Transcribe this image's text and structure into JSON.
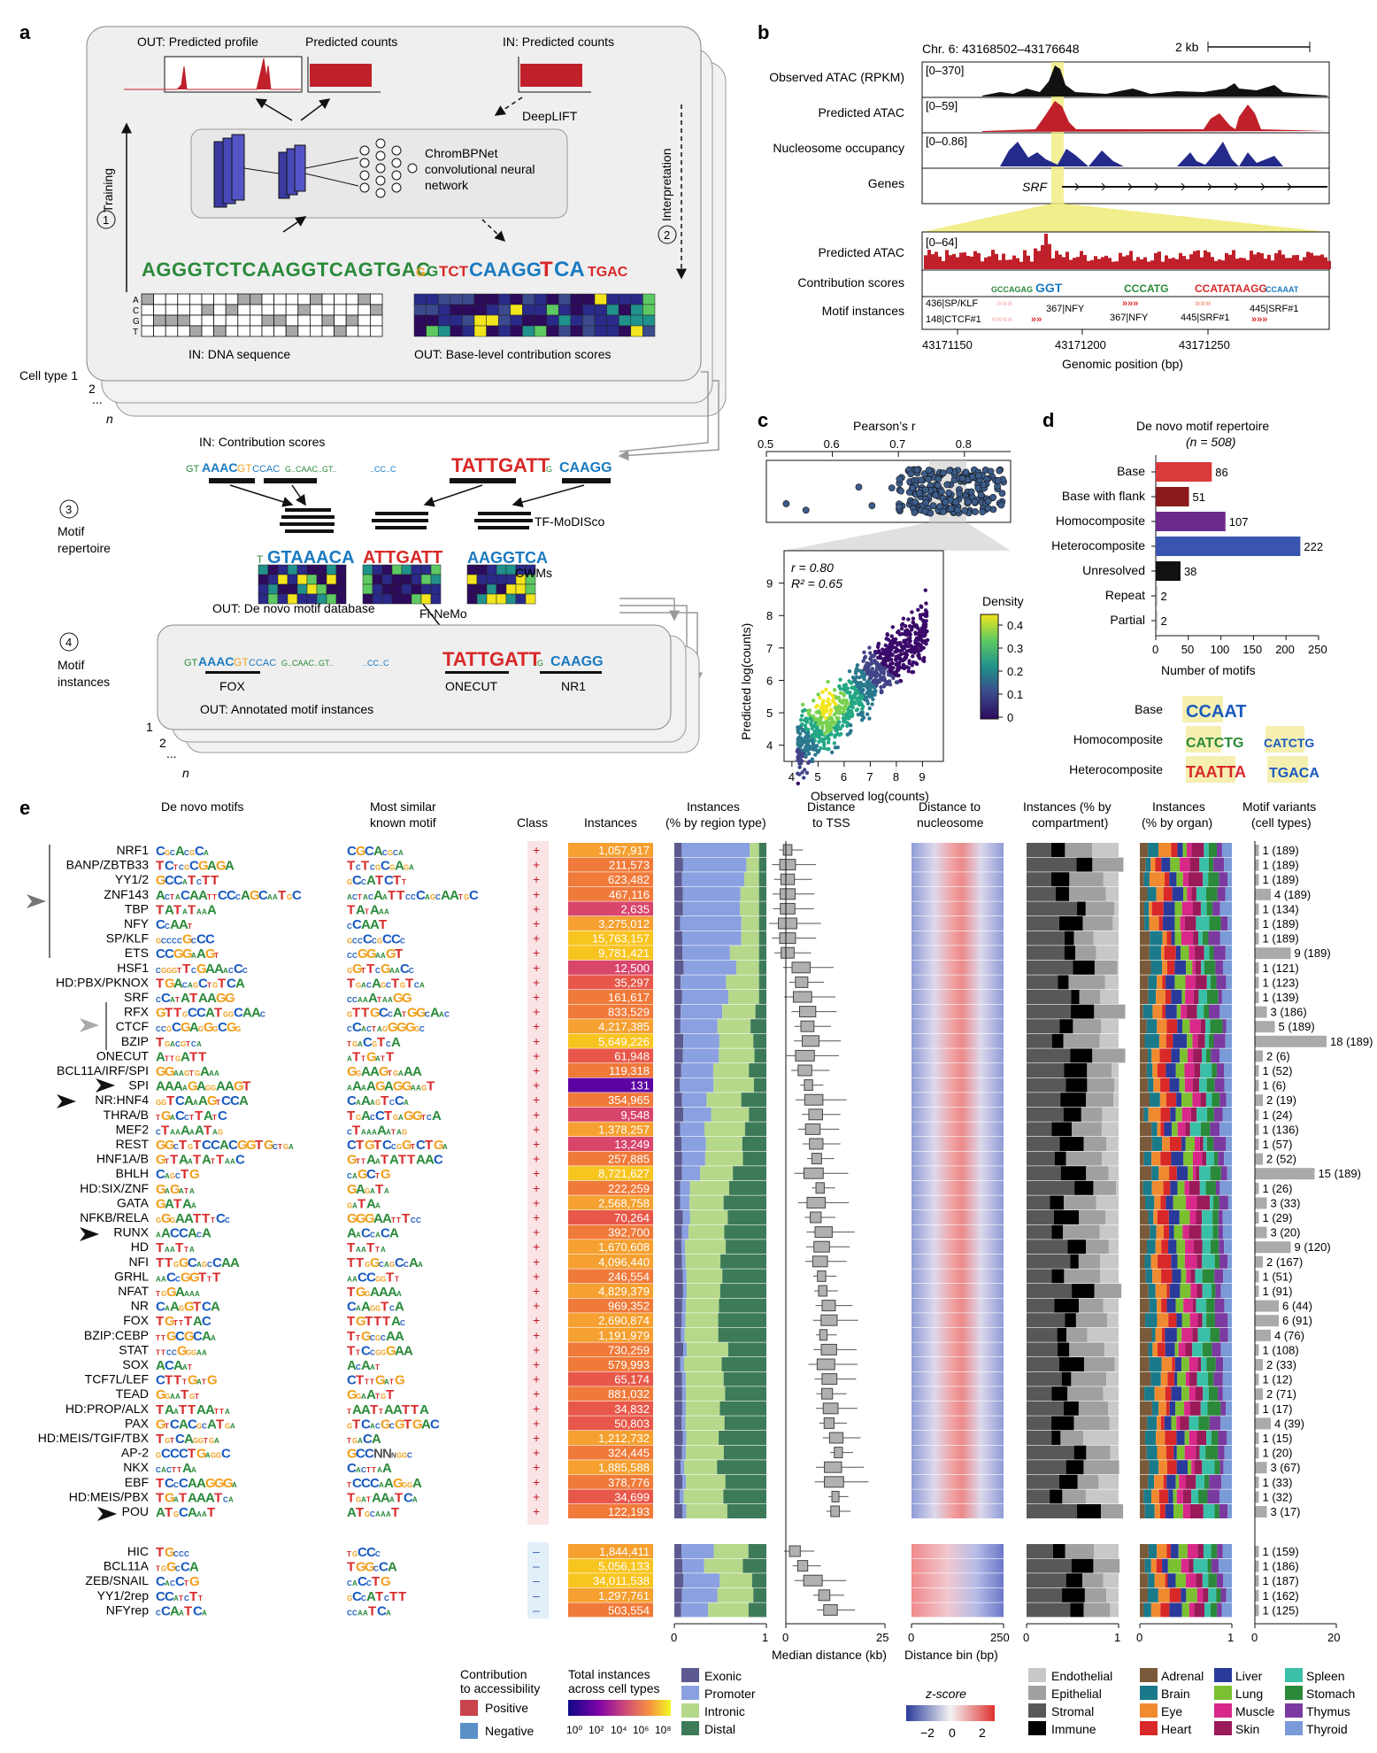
{
  "panel_a": {
    "letter": "a",
    "out_profile": "OUT:  Predicted profile",
    "out_counts": "Predicted counts",
    "in_counts": "IN: Predicted counts",
    "deeplift": "DeepLIFT",
    "model_line1": "ChromBPNet",
    "model_line2": "convolutional neural",
    "model_line3": "network",
    "training": "Training",
    "interpretation": "Interpretation",
    "step1": "1",
    "step2": "2",
    "step3": "3",
    "step4": "4",
    "dna_sequence": "AGGGTCTCAAGGTCAGTGAC",
    "in_dna": "IN: DNA sequence",
    "out_contrib": "OUT: Base-level contribution scores",
    "cell_type_1": "Cell type 1",
    "cell_type_2": "2",
    "cell_dots": "...",
    "cell_n": "n",
    "in_contrib": "IN: Contribution scores",
    "tf_modisco": "TF-MoDISco",
    "motif_repertoire_1": "Motif",
    "motif_repertoire_2": "repertoire",
    "cwms": "CWMs",
    "out_denovo": "OUT: De novo motif database",
    "finemo": "Fi-NeMo",
    "motif_instances_1": "Motif",
    "motif_instances_2": "instances",
    "inst_fox": "FOX",
    "inst_onecut": "ONECUT",
    "inst_nr1": "NR1",
    "out_annotated": "OUT: Annotated motif instances",
    "stack_1": "1",
    "stack_2": "2",
    "stack_dots": "...",
    "stack_n": "n",
    "acgt": [
      "A",
      "C",
      "G",
      "T"
    ]
  },
  "panel_b": {
    "letter": "b",
    "locus": "Chr. 6: 43168502–43176648",
    "scale": "2 kb",
    "tracks": [
      {
        "label": "Observed ATAC (RPKM)",
        "range": "[0–370]"
      },
      {
        "label": "Predicted ATAC",
        "range": "[0–59]"
      },
      {
        "label": "Nucleosome occupancy",
        "range": "[0–0.86]"
      },
      {
        "label": "Genes",
        "range": ""
      }
    ],
    "gene": "SRF",
    "zoom_tracks": [
      {
        "label": "Predicted ATAC",
        "range": "[0–64]"
      },
      {
        "label": "Contribution scores",
        "range": ""
      },
      {
        "label": "Motif instances",
        "range": ""
      }
    ],
    "motif_labels": [
      "436|SP/KLF",
      "148|CTCF#1",
      "367|NFY",
      "367|NFY",
      "445|SRF#1",
      "445|SRF#1"
    ],
    "x_ticks": [
      "43171150",
      "43171200",
      "43171250"
    ],
    "x_label": "Genomic position (bp)"
  },
  "panel_c": {
    "letter": "c",
    "title": "Pearson’s r",
    "top_ticks": [
      "0.5",
      "0.6",
      "0.7",
      "0.8"
    ],
    "r_text": "r = 0.80",
    "r2_text": "R² = 0.65",
    "x_label": "Observed log(counts)",
    "y_label": "Predicted log(counts)",
    "x_ticks": [
      "4",
      "5",
      "6",
      "7",
      "8",
      "9"
    ],
    "y_ticks": [
      "4",
      "5",
      "6",
      "7",
      "8",
      "9"
    ],
    "density_label": "Density",
    "density_ticks": [
      "0.4",
      "0.3",
      "0.2",
      "0.1",
      "0"
    ]
  },
  "panel_d": {
    "letter": "d",
    "title": "De novo motif repertoire",
    "subtitle": "(n = 508)",
    "x_label": "Number of motifs",
    "examples": [
      "Base",
      "Homocomposite",
      "Heterocomposite"
    ],
    "logo_text": [
      "CCAAT",
      "CATCTG",
      "CATCTG",
      "TAATTA",
      "TGACA"
    ]
  },
  "chart_data": {
    "type": "bar",
    "title": "De novo motif repertoire",
    "categories": [
      "Base",
      "Base with flank",
      "Homocomposite",
      "Heterocomposite",
      "Unresolved",
      "Repeat",
      "Partial"
    ],
    "values": [
      86,
      51,
      107,
      222,
      38,
      2,
      2
    ],
    "colors": [
      "#d93a3a",
      "#8b1a1a",
      "#6a2a8c",
      "#3a55b0",
      "#111111",
      "#888888",
      "#888888"
    ],
    "xlabel": "Number of motifs",
    "ylabel": "",
    "xlim": [
      0,
      250
    ],
    "x_ticks": [
      "0",
      "50",
      "100",
      "150",
      "200",
      "250"
    ]
  },
  "panel_e": {
    "letter": "e",
    "headers": {
      "denovo": "De novo motifs",
      "similar_1": "Most similar",
      "similar_2": "known motif",
      "class": "Class",
      "instances": "Instances",
      "region_1": "Instances",
      "region_2": "(% by region type)",
      "tss_1": "Distance",
      "tss_2": "to TSS",
      "nuc_1": "Distance to",
      "nuc_2": "nucleosome",
      "comp_1": "Instances (% by",
      "comp_2": "compartment)",
      "organ_1": "Instances",
      "organ_2": "(% by organ)",
      "variants_1": "Motif variants",
      "variants_2": "(cell types)"
    },
    "positive_rows": [
      {
        "name": "NRF1",
        "logo": "CGCACGCA",
        "known": "CGCACGCA",
        "count": "1,057,917",
        "variants": "1 (189)"
      },
      {
        "name": "BANP/ZBTB33",
        "logo": "TCTCGCGAGA",
        "known": "TCTCGCGAGA",
        "count": "211,573",
        "variants": "1 (189)"
      },
      {
        "name": "YY1/2",
        "logo": "GCCATCTT",
        "known": "GCCATCTT",
        "count": "623,482",
        "variants": "1 (189)"
      },
      {
        "name": "ZNF143",
        "logo": "ACTACAATTCCCAGCAATGC",
        "known": "ACTACAATTCCCAGCAATGC",
        "count": "467,116",
        "variants": "4 (189)"
      },
      {
        "name": "TBP",
        "logo": "TATATAAA",
        "known": "TATAAA",
        "count": "2,635",
        "variants": "1 (134)"
      },
      {
        "name": "NFY",
        "logo": "CCAAT",
        "known": "CCAAT",
        "count": "3,275,012",
        "variants": "1 (189)"
      },
      {
        "name": "SP/KLF",
        "logo": "GCCCCGCCC",
        "known": "GCCCCGCCC",
        "count": "15,763,157",
        "variants": "1 (189)"
      },
      {
        "name": "ETS",
        "logo": "CCGGAAGT",
        "known": "CCGGAAGT",
        "count": "9,781,421",
        "variants": "9 (189)"
      },
      {
        "name": "HSF1",
        "logo": "CGGGTTCGAAACCC",
        "known": "GGTTCGAACC",
        "count": "12,500",
        "variants": "1 (121)"
      },
      {
        "name": "HD:PBX/PKNOX",
        "logo": "TGACAGCTGTCA",
        "known": "TGACAGCTGTCA",
        "count": "35,297",
        "variants": "1 (123)"
      },
      {
        "name": "SRF",
        "logo": "CCATATAAGG",
        "known": "CCAAATAAGG",
        "count": "161,617",
        "variants": "1 (139)"
      },
      {
        "name": "RFX",
        "logo": "GTTGCCATGGCAAC",
        "known": "GTTGCCATGGCAAC",
        "count": "833,529",
        "variants": "3 (186)"
      },
      {
        "name": "CTCF",
        "logo": "CCGCGAGGGCGG",
        "known": "CCACTAGGGGGC",
        "count": "4,217,385",
        "variants": "5 (189)"
      },
      {
        "name": "BZIP",
        "logo": "TGACGTCA",
        "known": "TGACGTCA",
        "count": "5,649,226",
        "variants": "18 (189)"
      },
      {
        "name": "ONECUT",
        "logo": "ATTGATT",
        "known": "ATTGATT",
        "count": "61,948",
        "variants": "2 (6)"
      },
      {
        "name": "BCL11A/IRF/SPI",
        "logo": "GGAAGTGAAA",
        "known": "GGAAGTGAAA",
        "count": "119,318",
        "variants": "1 (52)"
      },
      {
        "name": "SPI",
        "logo": "AAAAGAGGAAGT",
        "known": "AAAAGAGGAAGT",
        "count": "131",
        "variants": "1 (6)"
      },
      {
        "name": "NR:HNF4",
        "logo": "GGTCAAAGTCCA",
        "known": "CAAAGTCCA",
        "count": "354,965",
        "variants": "2 (19)"
      },
      {
        "name": "THRA/B",
        "logo": "TGACCTTATC",
        "known": "TGACCTGAGGTCA",
        "count": "9,548",
        "variants": "1 (24)"
      },
      {
        "name": "MEF2",
        "logo": "CTAAAAATAG",
        "known": "CTAAAAATAG",
        "count": "1,378,257",
        "variants": "1 (136)"
      },
      {
        "name": "REST",
        "logo": "GGCTGTCCACGGTGCTGA",
        "known": "CTGTCCGGTCTGA",
        "count": "13,249",
        "variants": "1 (57)"
      },
      {
        "name": "HNF1A/B",
        "logo": "GTTAATATTAAC",
        "known": "GTTAATATTAAC",
        "count": "257,885",
        "variants": "2 (52)"
      },
      {
        "name": "BHLH",
        "logo": "CAGCTG",
        "known": "CAGCTG",
        "count": "8,721,627",
        "variants": "15 (189)"
      },
      {
        "name": "HD:SIX/ZNF",
        "logo": "GAGATA",
        "known": "GAGATA",
        "count": "222,259",
        "variants": "1 (26)"
      },
      {
        "name": "GATA",
        "logo": "GATAA",
        "known": "GATAA",
        "count": "2,568,758",
        "variants": "3 (33)"
      },
      {
        "name": "NFKB/RELA",
        "logo": "GGGAATTTCC",
        "known": "GGGAATTTCC",
        "count": "70,264",
        "variants": "1 (29)"
      },
      {
        "name": "RUNX",
        "logo": "AACCACA",
        "known": "AACCACA",
        "count": "392,700",
        "variants": "3 (20)"
      },
      {
        "name": "HD",
        "logo": "TAATTA",
        "known": "TAATTA",
        "count": "1,670,608",
        "variants": "9 (120)"
      },
      {
        "name": "NFI",
        "logo": "TTGGCAGCCAA",
        "known": "TTGGCAGCCAA",
        "count": "4,096,440",
        "variants": "2 (167)"
      },
      {
        "name": "GRHL",
        "logo": "AACCGGTTT",
        "known": "AACCGGTT",
        "count": "246,554",
        "variants": "1 (51)"
      },
      {
        "name": "NFAT",
        "logo": "TGGAAAA",
        "known": "TGGAAAA",
        "count": "4,829,379",
        "variants": "1 (91)"
      },
      {
        "name": "NR",
        "logo": "CAAGGTCA",
        "known": "CAAGGTCA",
        "count": "969,352",
        "variants": "6 (44)"
      },
      {
        "name": "FOX",
        "logo": "TGTTTAC",
        "known": "TGTTTAC",
        "count": "2,690,874",
        "variants": "6 (91)"
      },
      {
        "name": "BZIP:CEBP",
        "logo": "TTGCGCAA",
        "known": "TTGCGCAA",
        "count": "1,191,979",
        "variants": "4 (76)"
      },
      {
        "name": "STAT",
        "logo": "TTCCGGGAA",
        "known": "TTCCGGGAA",
        "count": "730,259",
        "variants": "1 (108)"
      },
      {
        "name": "SOX",
        "logo": "ACAAT",
        "known": "ACAAT",
        "count": "579,993",
        "variants": "2 (33)"
      },
      {
        "name": "TCF7L/LEF",
        "logo": "CTTTGATG",
        "known": "CTTTGATG",
        "count": "65,174",
        "variants": "1 (12)"
      },
      {
        "name": "TEAD",
        "logo": "GGAATGT",
        "known": "GGAATGT",
        "count": "881,032",
        "variants": "2 (71)"
      },
      {
        "name": "HD:PROP/ALX",
        "logo": "TAATTAATTA",
        "known": "TAATTAATTA",
        "count": "34,832",
        "variants": "1 (17)"
      },
      {
        "name": "PAX",
        "logo": "GTCACGCATGA",
        "known": "GTCACGCGTGAC",
        "count": "50,803",
        "variants": "4 (39)"
      },
      {
        "name": "HD:MEIS/TGIF/TBX",
        "logo": "TGTCAGGTGA",
        "known": "TGACA",
        "count": "1,212,732",
        "variants": "1 (15)"
      },
      {
        "name": "AP-2",
        "logo": "GCCCTGAGGC",
        "known": "GCCNNNGGC",
        "count": "324,445",
        "variants": "1 (20)"
      },
      {
        "name": "NKX",
        "logo": "CACTTAA",
        "known": "CACTTAA",
        "count": "1,885,588",
        "variants": "3 (67)"
      },
      {
        "name": "EBF",
        "logo": "TCCCAAGGGA",
        "known": "TCCCAAGGGA",
        "count": "378,776",
        "variants": "1 (33)"
      },
      {
        "name": "HD:MEIS/PBX",
        "logo": "TGATAAATCA",
        "known": "TGATAAATCA",
        "count": "34,699",
        "variants": "1 (32)"
      },
      {
        "name": "POU",
        "logo": "ATGCAAAT",
        "known": "ATGCAAAT",
        "count": "122,193",
        "variants": "3 (17)"
      }
    ],
    "negative_rows": [
      {
        "name": "HIC",
        "logo": "TGCCC",
        "known": "TGCCC",
        "count": "1,844,411",
        "variants": "1 (159)"
      },
      {
        "name": "BCL11A",
        "logo": "TGGCCA",
        "known": "TGGCCA",
        "count": "5,056,133",
        "variants": "1 (186)"
      },
      {
        "name": "ZEB/SNAIL",
        "logo": "CACCTG",
        "known": "CACCTG",
        "count": "34,011,538",
        "variants": "1 (187)"
      },
      {
        "name": "YY1/2rep",
        "logo": "CCATCTT",
        "known": "GCCATCTT",
        "count": "1,297,761",
        "variants": "1 (162)"
      },
      {
        "name": "NFYrep",
        "logo": "CCAATCA",
        "known": "CCAATCA",
        "count": "503,554",
        "variants": "1 (125)"
      }
    ],
    "plus_sign": "+",
    "minus_sign": "–",
    "axis_region": [
      "0",
      "1"
    ],
    "axis_tss": [
      "0",
      "25"
    ],
    "axis_tss_label": "Median distance (kb)",
    "axis_nuc": [
      "0",
      "250"
    ],
    "axis_nuc_label": "Distance bin (bp)",
    "axis_comp": [
      "0",
      "1"
    ],
    "axis_organ": [
      "0",
      "1"
    ],
    "axis_variants": [
      "0",
      "20"
    ]
  },
  "legend": {
    "contrib_title_1": "Contribution",
    "contrib_title_2": "to accessibility",
    "positive": "Positive",
    "negative": "Negative",
    "total_1": "Total instances",
    "total_2": "across cell types",
    "total_ticks": [
      "10⁰",
      "10²",
      "10⁴",
      "10⁶",
      "10⁸"
    ],
    "regions": [
      "Exonic",
      "Promoter",
      "Intronic",
      "Distal"
    ],
    "zscore": "z-score",
    "zscore_ticks": [
      "−2",
      "0",
      "2"
    ],
    "compartments": [
      "Endothelial",
      "Epithelial",
      "Stromal",
      "Immune"
    ],
    "organs_col1": [
      "Adrenal",
      "Brain",
      "Eye",
      "Heart"
    ],
    "organs_col2": [
      "Liver",
      "Lung",
      "Muscle",
      "Skin"
    ],
    "organs_col3": [
      "Spleen",
      "Stomach",
      "Thymus",
      "Thyroid"
    ],
    "colors": {
      "positive": "#c8434c",
      "negative": "#5a8fc8",
      "exonic": "#5c5a8e",
      "promoter": "#8aa0e0",
      "intronic": "#b5d88a",
      "distal": "#3d7a58",
      "endothelial": "#c8c8c8",
      "epithelial": "#a0a0a0",
      "stromal": "#585858",
      "immune": "#000000",
      "adrenal": "#7a5a3a",
      "brain": "#1a7a8a",
      "eye": "#f08a30",
      "heart": "#d82828",
      "liver": "#2a3a9a",
      "lung": "#7ac030",
      "muscle": "#d8288a",
      "skin": "#9a1a5a",
      "spleen": "#3ac0a8",
      "stomach": "#2a8a3a",
      "thymus": "#7a3aa0",
      "thyroid": "#7a9ad8"
    }
  }
}
